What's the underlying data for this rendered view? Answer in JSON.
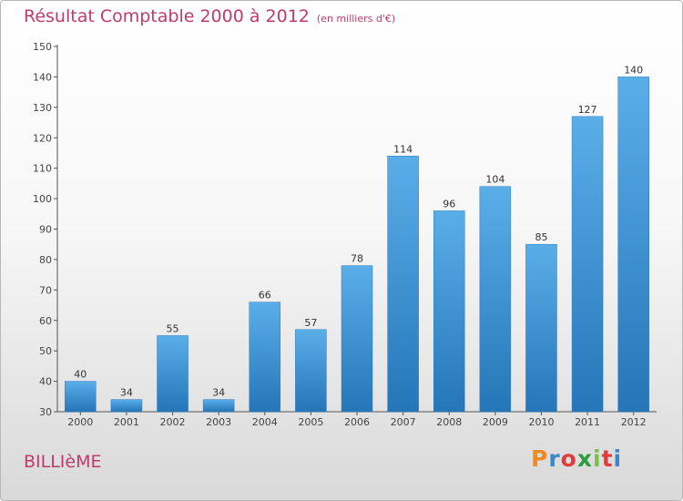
{
  "header": {
    "title": "Résultat Comptable 2000 à 2012",
    "subtitle": "(en milliers d'€)"
  },
  "footer": {
    "town": "BILLIèME",
    "brand": "Proxiti",
    "brand_colors": [
      "#f08a1e",
      "#3a86c8",
      "#e23b3b",
      "#2a9d3c",
      "#7ac143",
      "#e23b3b",
      "#3a86c8"
    ]
  },
  "chart_data": {
    "type": "bar",
    "title": "Résultat Comptable 2000 à 2012",
    "subtitle": "(en milliers d'€)",
    "categories": [
      "2000",
      "2001",
      "2002",
      "2003",
      "2004",
      "2005",
      "2006",
      "2007",
      "2008",
      "2009",
      "2010",
      "2011",
      "2012"
    ],
    "values": [
      40,
      34,
      55,
      34,
      66,
      57,
      78,
      114,
      96,
      104,
      85,
      127,
      140
    ],
    "ylim": [
      30,
      150
    ],
    "yticks": [
      30,
      40,
      50,
      60,
      70,
      80,
      90,
      100,
      110,
      120,
      130,
      140,
      150
    ],
    "xlabel": "",
    "ylabel": "",
    "grid": false,
    "bar_color": "#3f93d6"
  }
}
